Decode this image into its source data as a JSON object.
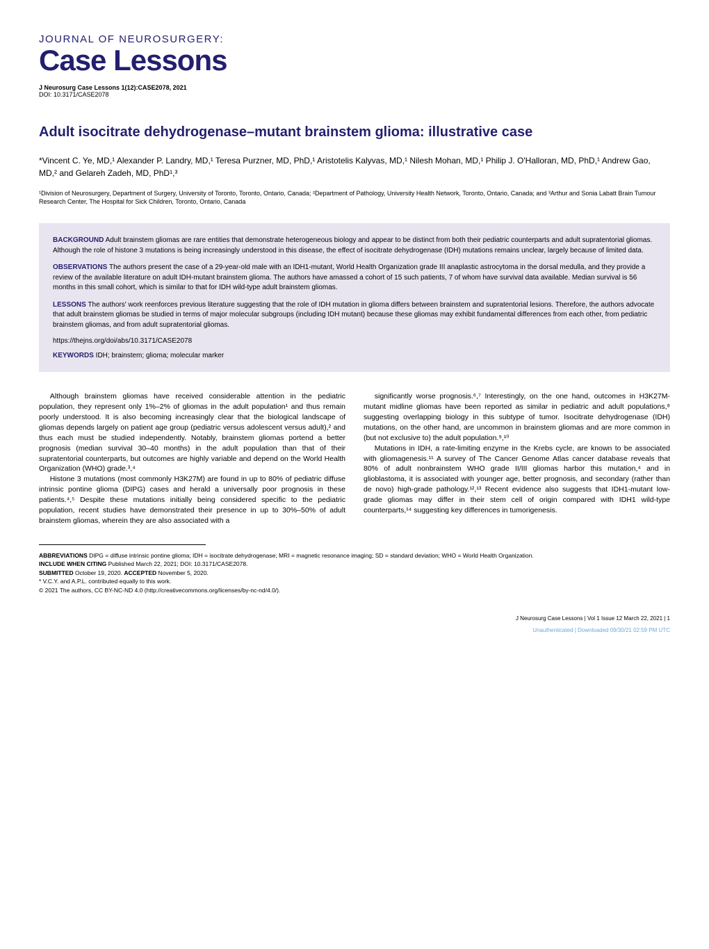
{
  "journal": {
    "name": "JOURNAL OF NEUROSURGERY:",
    "series": "Case Lessons",
    "citation": "J Neurosurg Case Lessons 1(12):CASE2078, 2021",
    "doi": "DOI: 10.3171/CASE2078"
  },
  "article": {
    "title": "Adult isocitrate dehydrogenase–mutant brainstem glioma: illustrative case",
    "authors": "*Vincent C. Ye, MD,¹ Alexander P. Landry, MD,¹ Teresa Purzner, MD, PhD,¹ Aristotelis Kalyvas, MD,¹ Nilesh Mohan, MD,¹ Philip J. O'Halloran, MD, PhD,¹ Andrew Gao, MD,² and Gelareh Zadeh, MD, PhD¹,³",
    "affiliations": "¹Division of Neurosurgery, Department of Surgery, University of Toronto, Toronto, Ontario, Canada; ²Department of Pathology, University Health Network, Toronto, Ontario, Canada; and ³Arthur and Sonia Labatt Brain Tumour Research Center, The Hospital for Sick Children, Toronto, Ontario, Canada"
  },
  "abstract": {
    "background": {
      "label": "BACKGROUND",
      "text": " Adult brainstem gliomas are rare entities that demonstrate heterogeneous biology and appear to be distinct from both their pediatric counterparts and adult supratentorial gliomas. Although the role of histone 3 mutations is being increasingly understood in this disease, the effect of isocitrate dehydrogenase (IDH) mutations remains unclear, largely because of limited data."
    },
    "observations": {
      "label": "OBSERVATIONS",
      "text": " The authors present the case of a 29-year-old male with an IDH1-mutant, World Health Organization grade III anaplastic astrocytoma in the dorsal medulla, and they provide a review of the available literature on adult IDH-mutant brainstem glioma. The authors have amassed a cohort of 15 such patients, 7 of whom have survival data available. Median survival is 56 months in this small cohort, which is similar to that for IDH wild-type adult brainstem gliomas."
    },
    "lessons": {
      "label": "LESSONS",
      "text": " The authors' work reenforces previous literature suggesting that the role of IDH mutation in glioma differs between brainstem and supratentorial lesions. Therefore, the authors advocate that adult brainstem gliomas be studied in terms of major molecular subgroups (including IDH mutant) because these gliomas may exhibit fundamental differences from each other, from pediatric brainstem gliomas, and from adult supratentorial gliomas."
    },
    "doi_url": "https://thejns.org/doi/abs/10.3171/CASE2078",
    "keywords": {
      "label": "KEYWORDS",
      "text": " IDH; brainstem; glioma; molecular marker"
    }
  },
  "body": {
    "left": {
      "p1": "Although brainstem gliomas have received considerable attention in the pediatric population, they represent only 1%–2% of gliomas in the adult population¹ and thus remain poorly understood. It is also becoming increasingly clear that the biological landscape of gliomas depends largely on patient age group (pediatric versus adolescent versus adult),² and thus each must be studied independently. Notably, brainstem gliomas portend a better prognosis (median survival 30–40 months) in the adult population than that of their supratentorial counterparts, but outcomes are highly variable and depend on the World Health Organization (WHO) grade.³,⁴",
      "p2": "Histone 3 mutations (most commonly H3K27M) are found in up to 80% of pediatric diffuse intrinsic pontine glioma (DIPG) cases and herald a universally poor prognosis in these patients.⁴,⁵ Despite these mutations initially being considered specific to the pediatric population, recent studies have demonstrated their presence in up to 30%–50% of adult brainstem gliomas, wherein they are also associated with a"
    },
    "right": {
      "p1": "significantly worse prognosis.⁶,⁷ Interestingly, on the one hand, outcomes in H3K27M-mutant midline gliomas have been reported as similar in pediatric and adult populations,⁸ suggesting overlapping biology in this subtype of tumor. Isocitrate dehydrogenase (IDH) mutations, on the other hand, are uncommon in brainstem gliomas and are more common in (but not exclusive to) the adult population.⁹,¹⁰",
      "p2": "Mutations in IDH, a rate-limiting enzyme in the Krebs cycle, are known to be associated with gliomagenesis.¹¹ A survey of The Cancer Genome Atlas cancer database reveals that 80% of adult nonbrainstem WHO grade II/III gliomas harbor this mutation,⁴ and in glioblastoma, it is associated with younger age, better prognosis, and secondary (rather than de novo) high-grade pathology.¹²,¹³ Recent evidence also suggests that IDH1-mutant low-grade gliomas may differ in their stem cell of origin compared with IDH1 wild-type counterparts,¹⁴ suggesting key differences in tumorigenesis."
    }
  },
  "footer": {
    "abbreviations": {
      "label": "ABBREVIATIONS",
      "text": " DIPG = diffuse intrinsic pontine glioma; IDH = isocitrate dehydrogenase; MRI = magnetic resonance imaging; SD = standard deviation; WHO = World Health Organization."
    },
    "include": {
      "label": "INCLUDE WHEN CITING",
      "text": " Published March 22, 2021; DOI: 10.3171/CASE2078."
    },
    "submitted": {
      "label": "SUBMITTED",
      "text": " October 19, 2020. "
    },
    "accepted": {
      "label": "ACCEPTED",
      "text": " November 5, 2020."
    },
    "note": "* V.C.Y. and A.P.L. contributed equally to this work.",
    "license": "© 2021 The authors, CC BY-NC-ND 4.0 (http://creativecommons.org/licenses/by-nc-nd/4.0/)."
  },
  "pagefoot": {
    "text": "J Neurosurg Case Lessons | Vol 1 Issue 12 March 22, 2021 | 1",
    "unauth": "Unauthenticated | Downloaded 09/30/21 02:59 PM UTC"
  },
  "colors": {
    "brand": "#231f6e",
    "abstract_bg": "#e8e5f0",
    "unauth": "#6fa8d8"
  }
}
